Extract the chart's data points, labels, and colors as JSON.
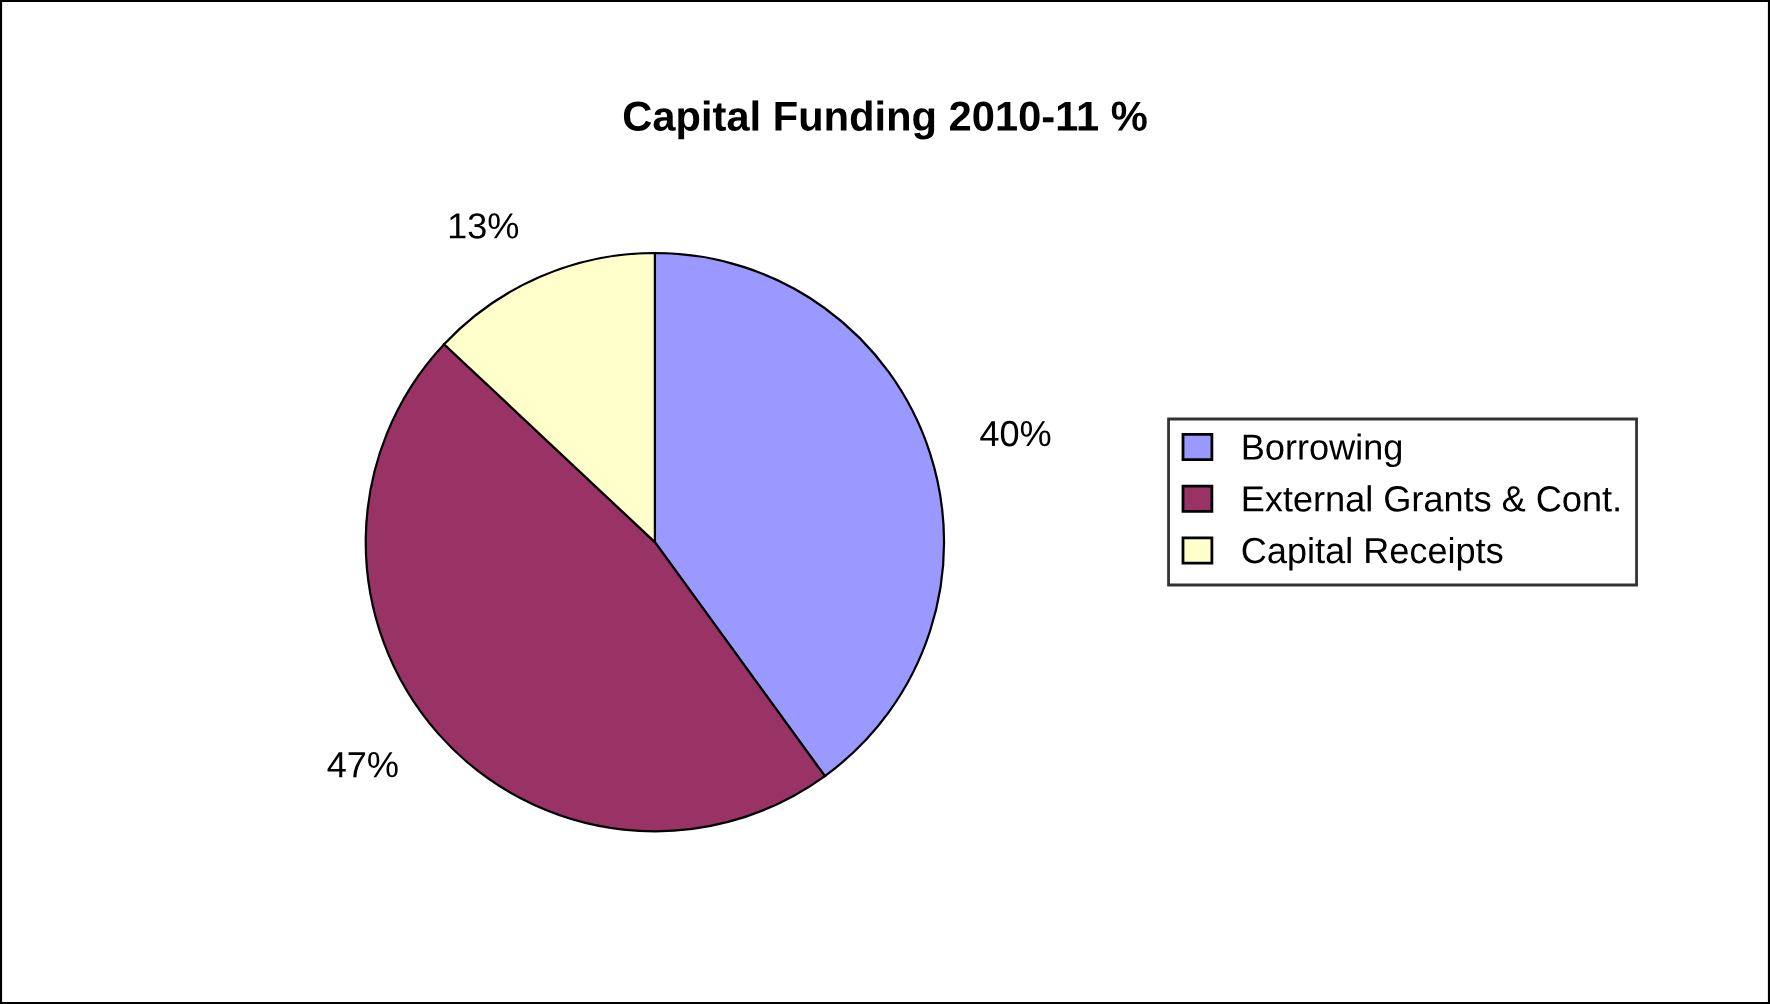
{
  "chart_data": {
    "type": "pie",
    "title": "Capital Funding 2010-11 %",
    "categories": [
      "Borrowing",
      "External Grants & Cont.",
      "Capital Receipts"
    ],
    "values": [
      40,
      47,
      13
    ],
    "colors": [
      "#9999ff",
      "#993366",
      "#ffffcc"
    ],
    "value_labels": [
      "40%",
      "47%",
      "13%"
    ],
    "legend": "right"
  }
}
